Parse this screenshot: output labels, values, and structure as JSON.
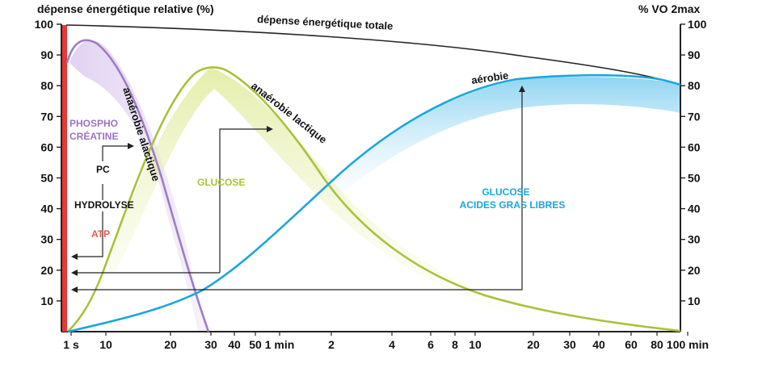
{
  "chart_data": {
    "type": "line",
    "ylabel_left": "dépense énergétique relative (%)",
    "ylabel_right": "% VO 2max",
    "y_ticks_left": [
      "100",
      "90",
      "80",
      "70",
      "60",
      "50",
      "40",
      "30",
      "20",
      "10"
    ],
    "y_ticks_right": [
      "100",
      "90",
      "80",
      "70",
      "60",
      "50",
      "40",
      "30",
      "20",
      "10"
    ],
    "ylim": [
      0,
      100
    ],
    "x_scale": "logarithmic-like (time)",
    "x_ticks": [
      "1 s",
      "10",
      "20",
      "30",
      "40",
      "50",
      "1 min",
      "2",
      "4",
      "6",
      "8",
      "10",
      "20",
      "30",
      "40",
      "60",
      "80",
      "100 min"
    ],
    "x_tick_colors": [
      "#111111",
      "#111111",
      "#111111",
      "#111111",
      "#111111",
      "#111111",
      "#111111",
      "#111111",
      "#111111",
      "#111111",
      "#111111",
      "#111111",
      "#111111",
      "#111111",
      "#111111",
      "#b9993e",
      "#111111",
      "#111111"
    ],
    "series": [
      {
        "name": "dépense énergétique totale",
        "color": "#222222",
        "points": [
          [
            "1 s",
            100
          ],
          [
            "1 min",
            98
          ],
          [
            "4",
            96
          ],
          [
            "20",
            91
          ],
          [
            "100 min",
            80
          ]
        ]
      },
      {
        "name": "anaérobie alactique",
        "color": "#a07cc5",
        "points": [
          [
            "1 s",
            88
          ],
          [
            "10",
            95
          ],
          [
            "20",
            60
          ],
          [
            "30",
            10
          ],
          [
            "35",
            0
          ]
        ]
      },
      {
        "name": "anaérobie lactique",
        "color": "#a9c23a",
        "points": [
          [
            "1 s",
            0
          ],
          [
            "10",
            25
          ],
          [
            "20",
            60
          ],
          [
            "40",
            87
          ],
          [
            "1 min",
            80
          ],
          [
            "2",
            50
          ],
          [
            "8",
            14
          ],
          [
            "20",
            7
          ],
          [
            "100 min",
            1
          ]
        ]
      },
      {
        "name": "aérobie",
        "color": "#1aa6de",
        "points": [
          [
            "1 s",
            0
          ],
          [
            "20",
            8
          ],
          [
            "40",
            20
          ],
          [
            "1 min",
            33
          ],
          [
            "2",
            50
          ],
          [
            "8",
            74
          ],
          [
            "20",
            83
          ],
          [
            "40",
            83
          ],
          [
            "100 min",
            80
          ]
        ]
      }
    ],
    "annotations": {
      "atp_column_label": "ATP",
      "pc_label": "PC",
      "hydrolyse_label": "HYDROLYSE",
      "phospho_line1": "PHOSPHO",
      "phospho_line2": "CRÉATINE",
      "glucose_label": "GLUCOSE",
      "glucose_aerobic_line1": "GLUCOSE",
      "glucose_aerobic_line2": "ACIDES GRAS LIBRES"
    },
    "colors": {
      "atp": "#e85a4a",
      "phospho": "#9b73c2",
      "lactic": "#a9c23a",
      "aerobic": "#1aa6de",
      "axis": "#222222"
    },
    "grid": false,
    "legend": "none (curves labeled inline)"
  }
}
